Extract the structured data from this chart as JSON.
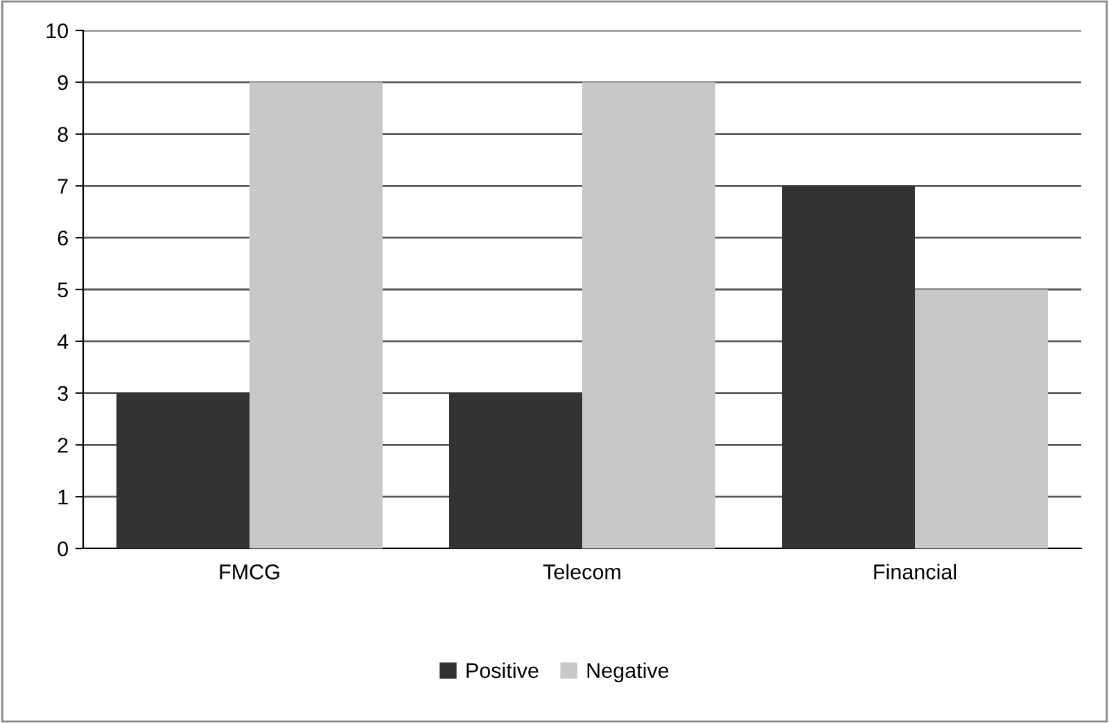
{
  "chart_data": {
    "type": "bar",
    "categories": [
      "FMCG",
      "Telecom",
      "Financial"
    ],
    "series": [
      {
        "name": "Positive",
        "color": "#333333",
        "values": [
          3,
          3,
          7
        ]
      },
      {
        "name": "Negative",
        "color": "#c8c8c8",
        "values": [
          9,
          9,
          5
        ]
      }
    ],
    "ylim": [
      0,
      10
    ],
    "yticks": [
      0,
      1,
      2,
      3,
      4,
      5,
      6,
      7,
      8,
      9,
      10
    ],
    "grid": "y",
    "legend": "bottom"
  }
}
